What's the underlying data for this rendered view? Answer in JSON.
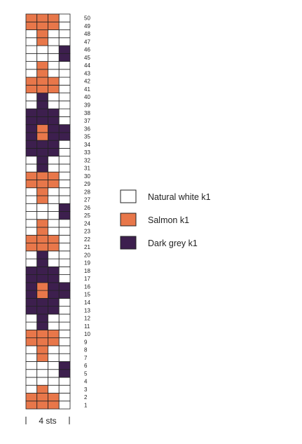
{
  "chart_data": {
    "type": "table",
    "columns": 4,
    "width_label": "4 sts",
    "row_numbers": [
      "1",
      "2",
      "3",
      "4",
      "5",
      "6",
      "7",
      "8",
      "9",
      "10",
      "11",
      "12",
      "13",
      "14",
      "15",
      "16",
      "17",
      "18",
      "19",
      "20",
      "21",
      "22",
      "23",
      "24",
      "25",
      "26",
      "27",
      "28",
      "29",
      "30",
      "31",
      "32",
      "33",
      "34",
      "35",
      "36",
      "37",
      "38",
      "39",
      "40",
      "41",
      "42",
      "43",
      "44",
      "45",
      "46",
      "47",
      "48",
      "49",
      "50"
    ],
    "rows": [
      "SSSW",
      "SSSW",
      "WSWW",
      "WWWW",
      "WWWD",
      "WWWD",
      "WSWW",
      "WSWW",
      "SSSW",
      "SSSW",
      "WDWW",
      "WDWW",
      "DDDW",
      "DDDW",
      "DSDD",
      "DSDD",
      "DDDW",
      "DDDW",
      "WDWW",
      "WDWW",
      "SSSW",
      "SSSW",
      "WSWW",
      "WSWW",
      "WWWD",
      "WWWD",
      "WSWW",
      "WSWW",
      "SSSW",
      "SSSW",
      "WDWW",
      "WDWW",
      "DDDW",
      "DDDW",
      "DSDD",
      "DSDD",
      "DDDW",
      "DDDW",
      "WDWW",
      "WDWW",
      "SSSW",
      "SSSW",
      "WSWW",
      "WSWW",
      "WWWD",
      "WWWD",
      "WSWW",
      "WSWW",
      "SSSW",
      "SSSW"
    ],
    "key": [
      {
        "code": "W",
        "label": "Natural white k1",
        "color": "#ffffff"
      },
      {
        "code": "S",
        "label": "Salmon k1",
        "color": "#e8774a"
      },
      {
        "code": "D",
        "label": "Dark grey k1",
        "color": "#3d1f4e"
      }
    ],
    "grid_color": "#222222"
  }
}
